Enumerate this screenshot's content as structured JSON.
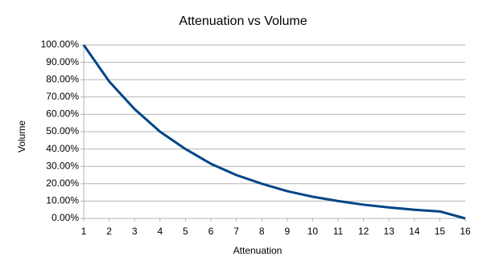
{
  "chart_data": {
    "type": "line",
    "title": "Attenuation vs Volume",
    "x_label": "Attenuation",
    "y_label": "Volume",
    "x": [
      1,
      2,
      3,
      4,
      5,
      6,
      7,
      8,
      9,
      10,
      11,
      12,
      13,
      14,
      15,
      16
    ],
    "series": [
      {
        "name": "Volume",
        "color": "#004586",
        "values": [
          100,
          79,
          63,
          50,
          40,
          31.5,
          25,
          20,
          15.7,
          12.5,
          10,
          7.9,
          6.3,
          5,
          4,
          0
        ]
      }
    ],
    "xlim": [
      1,
      16
    ],
    "xticks": [
      1,
      2,
      3,
      4,
      5,
      6,
      7,
      8,
      9,
      10,
      11,
      12,
      13,
      14,
      15,
      16
    ],
    "ylim": [
      0,
      100
    ],
    "yticks": [
      {
        "value": 0,
        "label": "0.00%"
      },
      {
        "value": 10,
        "label": "10.00%"
      },
      {
        "value": 20,
        "label": "20.00%"
      },
      {
        "value": 30,
        "label": "30.00%"
      },
      {
        "value": 40,
        "label": "40.00%"
      },
      {
        "value": 50,
        "label": "50.00%"
      },
      {
        "value": 60,
        "label": "60.00%"
      },
      {
        "value": 70,
        "label": "70.00%"
      },
      {
        "value": 80,
        "label": "80.00%"
      },
      {
        "value": 90,
        "label": "90.00%"
      },
      {
        "value": 100,
        "label": "100.00%"
      }
    ],
    "grid": true,
    "legend": false
  }
}
